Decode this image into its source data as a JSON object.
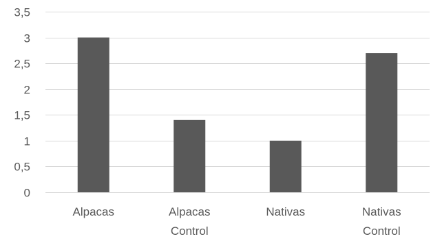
{
  "chart_data": {
    "type": "bar",
    "categories": [
      [
        "Alpacas"
      ],
      [
        "Alpacas",
        "Control"
      ],
      [
        "Nativas"
      ],
      [
        "Nativas",
        "Control"
      ]
    ],
    "values": [
      3.0,
      1.4,
      1.0,
      2.7
    ],
    "ylim": [
      0,
      3.5
    ],
    "yticks": [
      "0",
      "0,5",
      "1",
      "1,5",
      "2",
      "2,5",
      "3",
      "3,5"
    ],
    "ytick_values": [
      0,
      0.5,
      1,
      1.5,
      2,
      2.5,
      3,
      3.5
    ],
    "grid": true,
    "title": "",
    "xlabel": "",
    "ylabel": "",
    "colors": {
      "bar": "#595959",
      "grid": "#d9d9d9",
      "text": "#595959"
    }
  }
}
